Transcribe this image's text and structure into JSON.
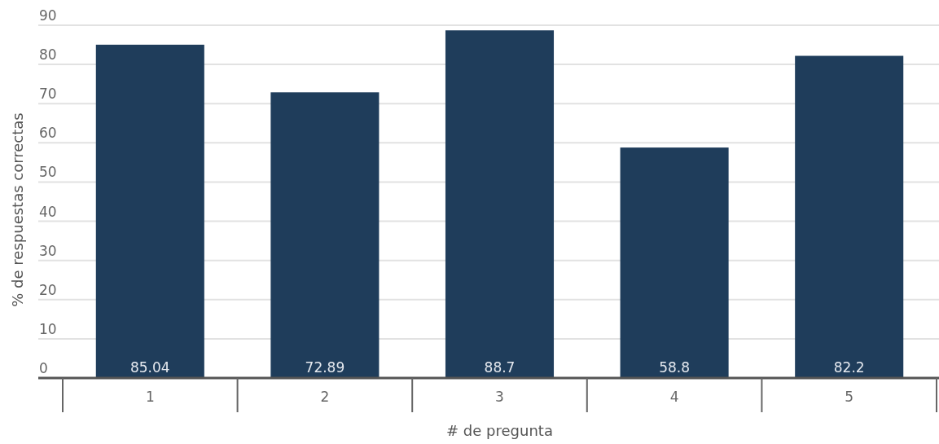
{
  "chart_data": {
    "type": "bar",
    "categories": [
      "1",
      "2",
      "3",
      "4",
      "5"
    ],
    "values": [
      85.04,
      72.89,
      88.7,
      58.8,
      82.2
    ],
    "color": "#1f3d5b",
    "xlabel": "# de pregunta",
    "ylabel": "% de respuestas correctas",
    "ylim": [
      0,
      90
    ],
    "yticks": [
      0,
      10,
      20,
      30,
      40,
      50,
      60,
      70,
      80,
      90
    ],
    "grid": "y",
    "data_labels": true
  }
}
